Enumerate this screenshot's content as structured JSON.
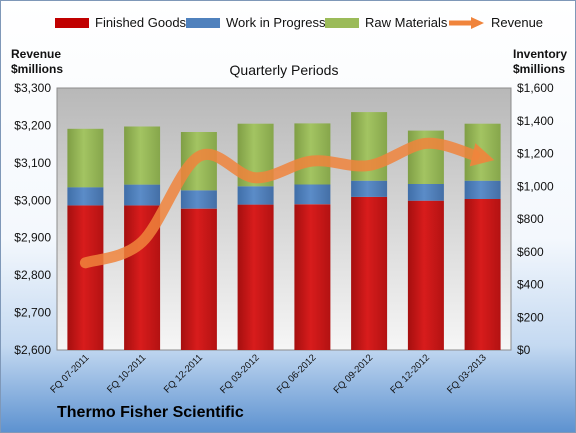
{
  "chart_data": {
    "type": "bar",
    "title": "Quarterly Periods",
    "source_label": "Thermo Fisher Scientific",
    "categories": [
      "FQ 07-2011",
      "FQ 10-2011",
      "FQ 12-2011",
      "FQ 03-2012",
      "FQ 06-2012",
      "FQ 09-2012",
      "FQ 12-2012",
      "FQ 03-2013"
    ],
    "series": [
      {
        "name": "Finished Goods",
        "axis": "right",
        "stacked": true,
        "color": "#c00000",
        "values": [
          883,
          883,
          863,
          888,
          890,
          935,
          912,
          922
        ]
      },
      {
        "name": "Work in Progress",
        "axis": "right",
        "stacked": true,
        "color": "#4f81bd",
        "values": [
          111,
          127,
          112,
          112,
          121,
          99,
          102,
          112
        ]
      },
      {
        "name": "Raw Materials",
        "axis": "right",
        "stacked": true,
        "color": "#9bbb59",
        "values": [
          357,
          355,
          356,
          382,
          373,
          419,
          326,
          348
        ]
      },
      {
        "name": "Revenue",
        "axis": "left",
        "type": "line",
        "color": "#f0843c",
        "values": [
          2833,
          2889,
          3117,
          3060,
          3105,
          3093,
          3152,
          3115
        ]
      }
    ],
    "left_axis": {
      "title_lines": [
        "Revenue",
        "$millions"
      ],
      "range": [
        2600,
        3300
      ],
      "ticks": [
        "$2,600",
        "$2,700",
        "$2,800",
        "$2,900",
        "$3,000",
        "$3,100",
        "$3,200",
        "$3,300"
      ]
    },
    "right_axis": {
      "title_lines": [
        "Inventory",
        "$millions"
      ],
      "range": [
        0,
        1600
      ],
      "ticks": [
        "$0",
        "$200",
        "$400",
        "$600",
        "$800",
        "$1,000",
        "$1,200",
        "$1,400",
        "$1,600"
      ]
    },
    "legend": {
      "placement": "top",
      "items": [
        "Finished Goods",
        "Work in Progress",
        "Raw Materials",
        "Revenue"
      ]
    },
    "grid": false
  }
}
